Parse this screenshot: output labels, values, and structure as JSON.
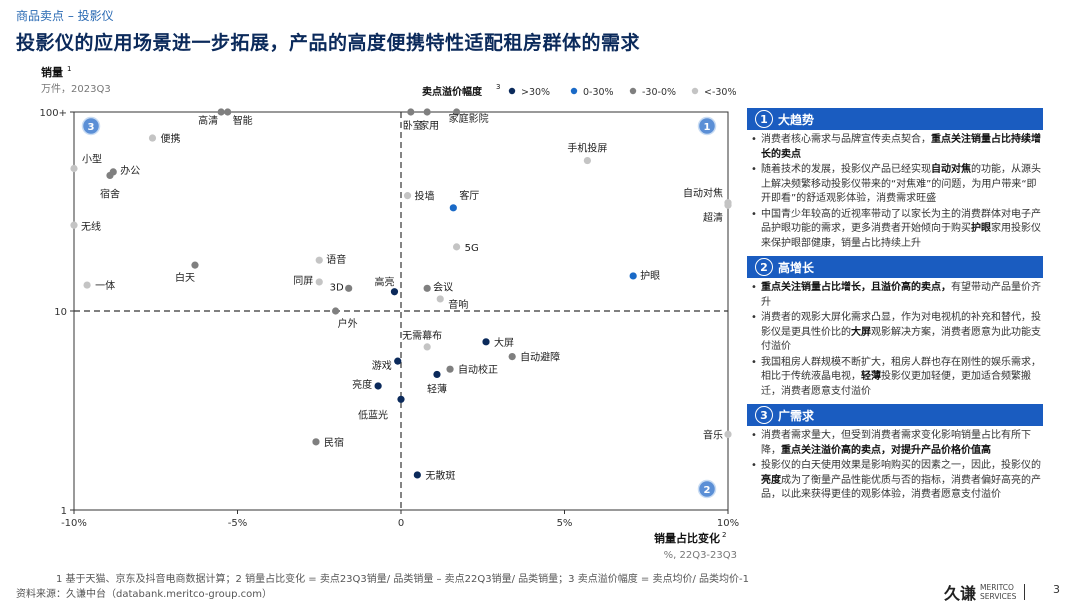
{
  "breadcrumb": "商品卖点 – 投影仪",
  "title": "投影仪的应用场景进一步拓展，产品的高度便携特性适配租房群体的需求",
  "chart_data": {
    "type": "scatter",
    "y_axis": {
      "label": "销量",
      "label_sup": "1",
      "unit": "万件，2023Q3",
      "scale": "log",
      "range": [
        1,
        100
      ],
      "ticks": [
        "1",
        "10",
        "100+"
      ]
    },
    "x_axis": {
      "label": "销量占比变化",
      "label_sup": "2",
      "unit": "%, 22Q3-23Q3",
      "range": [
        -10,
        10
      ],
      "ticks": [
        "-10%",
        "-5%",
        "0",
        "5%",
        "10%"
      ]
    },
    "legend": {
      "title": "卖点溢价幅度",
      "title_sup": "3",
      "placement": "top",
      "items": [
        {
          "label": ">30%",
          "color": "#0b2a5b"
        },
        {
          "label": "0-30%",
          "color": "#1a6ac7"
        },
        {
          "label": "-30-0%",
          "color": "#7f7f7f"
        },
        {
          "label": "<-30%",
          "color": "#c4c4c4"
        }
      ]
    },
    "quadrant_labels": [
      "3",
      "1",
      "2"
    ],
    "points": [
      {
        "label": "高清",
        "x": -5.5,
        "y": 100,
        "cat": "-30-0%"
      },
      {
        "label": "智能",
        "x": -5.3,
        "y": 100,
        "cat": "-30-0%"
      },
      {
        "label": "卧室",
        "x": 0.3,
        "y": 100,
        "cat": "-30-0%"
      },
      {
        "label": "家用",
        "x": 0.8,
        "y": 100,
        "cat": "-30-0%"
      },
      {
        "label": "家庭影院",
        "x": 1.7,
        "y": 100,
        "cat": "-30-0%"
      },
      {
        "label": "便携",
        "x": -7.6,
        "y": 74,
        "cat": "<-30%"
      },
      {
        "label": "小型",
        "x": -10,
        "y": 52,
        "cat": "<-30%"
      },
      {
        "label": "办公",
        "x": -8.8,
        "y": 50,
        "cat": "-30-0%"
      },
      {
        "label": "宿舍",
        "x": -8.9,
        "y": 48,
        "cat": "-30-0%"
      },
      {
        "label": "手机投屏",
        "x": 5.7,
        "y": 57,
        "cat": "<-30%"
      },
      {
        "label": "投墙",
        "x": 0.2,
        "y": 38,
        "cat": "<-30%"
      },
      {
        "label": "客厅",
        "x": 1.6,
        "y": 33,
        "cat": "0-30%"
      },
      {
        "label": "自动对焦",
        "x": 10,
        "y": 35,
        "cat": "<-30%"
      },
      {
        "label": "超清",
        "x": 10,
        "y": 34,
        "cat": "<-30%"
      },
      {
        "label": "无线",
        "x": -10,
        "y": 27,
        "cat": "<-30%"
      },
      {
        "label": "5G",
        "x": 1.7,
        "y": 21,
        "cat": "<-30%"
      },
      {
        "label": "语音",
        "x": -2.5,
        "y": 18,
        "cat": "<-30%"
      },
      {
        "label": "白天",
        "x": -6.3,
        "y": 17,
        "cat": "-30-0%"
      },
      {
        "label": "护眼",
        "x": 7.1,
        "y": 15,
        "cat": "0-30%"
      },
      {
        "label": "一体",
        "x": -9.6,
        "y": 13.5,
        "cat": "<-30%"
      },
      {
        "label": "同屏",
        "x": -2.5,
        "y": 14,
        "cat": "<-30%"
      },
      {
        "label": "3D",
        "x": -1.6,
        "y": 13,
        "cat": "-30-0%"
      },
      {
        "label": "高亮",
        "x": -0.2,
        "y": 12.5,
        "cat": ">30%"
      },
      {
        "label": "会议",
        "x": 0.8,
        "y": 13,
        "cat": "-30-0%"
      },
      {
        "label": "音响",
        "x": 1.2,
        "y": 11.5,
        "cat": "<-30%"
      },
      {
        "label": "户外",
        "x": -2,
        "y": 10,
        "cat": "-30-0%"
      },
      {
        "label": "无需幕布",
        "x": 0.8,
        "y": 6.6,
        "cat": "<-30%"
      },
      {
        "label": "大屏",
        "x": 2.6,
        "y": 7,
        "cat": ">30%"
      },
      {
        "label": "自动避障",
        "x": 3.4,
        "y": 5.9,
        "cat": "-30-0%"
      },
      {
        "label": "游戏",
        "x": -0.1,
        "y": 5.6,
        "cat": ">30%"
      },
      {
        "label": "自动校正",
        "x": 1.5,
        "y": 5.1,
        "cat": "-30-0%"
      },
      {
        "label": "亮度",
        "x": -0.7,
        "y": 4.2,
        "cat": ">30%"
      },
      {
        "label": "轻薄",
        "x": 1.1,
        "y": 4.8,
        "cat": ">30%"
      },
      {
        "label": "低蓝光",
        "x": 0,
        "y": 3.6,
        "cat": ">30%"
      },
      {
        "label": "民宿",
        "x": -2.6,
        "y": 2.2,
        "cat": "-30-0%"
      },
      {
        "label": "音乐",
        "x": 10,
        "y": 2.4,
        "cat": "<-30%"
      },
      {
        "label": "无散斑",
        "x": 0.5,
        "y": 1.5,
        "cat": ">30%"
      }
    ]
  },
  "side_panel": [
    {
      "num": "1",
      "title": "大趋势",
      "bullets": [
        [
          {
            "t": "消费者核心需求与品牌宣传卖点契合，"
          },
          {
            "t": "重点关注销量占比持续增长的卖点",
            "b": true
          }
        ],
        [
          {
            "t": "随着技术的发展，投影仪产品已经实现"
          },
          {
            "t": "自动对焦",
            "b": true
          },
          {
            "t": "的功能，从源头上解决频繁移动投影仪带来的“对焦难”的问题，为用户带来“即开即看”的舒适观影体验，消费需求旺盛"
          }
        ],
        [
          {
            "t": "中国青少年较高的近视率带动了以家长为主的消费群体对电子产品护眼功能的需求，更多消费者开始倾向于购买"
          },
          {
            "t": "护眼",
            "b": true
          },
          {
            "t": "家用投影仪来保护眼部健康，销量占比持续上升"
          }
        ]
      ]
    },
    {
      "num": "2",
      "title": "高增长",
      "bullets": [
        [
          {
            "t": "重点关注销量占比增长，且溢价高的卖点，",
            "b": true
          },
          {
            "t": "有望带动产品量价齐升"
          }
        ],
        [
          {
            "t": "消费者的观影大屏化需求凸显，作为对电视机的补充和替代，投影仪是更具性价比的"
          },
          {
            "t": "大屏",
            "b": true
          },
          {
            "t": "观影解决方案，消费者愿意为此功能支付溢价"
          }
        ],
        [
          {
            "t": "我国租房人群规模不断扩大，租房人群也存在刚性的娱乐需求，相比于传统液晶电视，"
          },
          {
            "t": "轻薄",
            "b": true
          },
          {
            "t": "投影仪更加轻便，更加适合频繁搬迁，消费者愿意支付溢价"
          }
        ]
      ]
    },
    {
      "num": "3",
      "title": "广需求",
      "bullets": [
        [
          {
            "t": "消费者需求量大，但受到消费者需求变化影响销量占比有所下降，"
          },
          {
            "t": "重点关注溢价高的卖点，对提升产品价格价值高",
            "b": true
          }
        ],
        [
          {
            "t": "投影仪的白天使用效果是影响购买的因素之一，因此，投影仪的"
          },
          {
            "t": "亮度",
            "b": true
          },
          {
            "t": "成为了衡量产品性能优质与否的指标，消费者偏好高亮的产品，以此来获得更佳的观影体验，消费者愿意支付溢价"
          }
        ]
      ]
    }
  ],
  "footnote": "1  基于天猫、京东及抖音电商数据计算；2  销量占比变化 = 卖点23Q3销量/ 品类销量 – 卖点22Q3销量/ 品类销量；3  卖点溢价幅度 = 卖点均价/ 品类均价-1",
  "source": "资料来源：久谦中台（databank.meritco-group.com）",
  "logo": {
    "cn": "久谦",
    "en1": "MERITCO",
    "en2": "SERVICES"
  },
  "page_number": "3"
}
